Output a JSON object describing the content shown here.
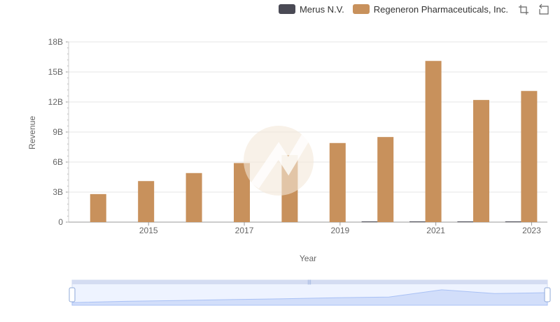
{
  "legend": [
    {
      "name": "Merus N.V.",
      "color": "#4a4a55"
    },
    {
      "name": "Regeneron Pharmaceuticals, Inc.",
      "color": "#c8915c"
    }
  ],
  "toolbar": {
    "zoom_icon": "zoom-in-icon",
    "reset_icon": "zoom-reset-icon"
  },
  "chart_data": {
    "type": "bar",
    "xlabel": "Year",
    "ylabel": "Revenue",
    "ylim": [
      0,
      18
    ],
    "y_ticks": [
      "0",
      "3B",
      "6B",
      "9B",
      "12B",
      "15B",
      "18B"
    ],
    "x_ticks": [
      "2015",
      "2017",
      "2019",
      "2021",
      "2023"
    ],
    "categories": [
      2014,
      2015,
      2016,
      2017,
      2018,
      2019,
      2020,
      2021,
      2022,
      2023
    ],
    "series": [
      {
        "name": "Merus N.V.",
        "color": "#4a4a55",
        "values": [
          0,
          0,
          0,
          0,
          0,
          0,
          0.03,
          0.05,
          0.04,
          0.04
        ]
      },
      {
        "name": "Regeneron Pharmaceuticals, Inc.",
        "color": "#c8915c",
        "values": [
          2.8,
          4.1,
          4.9,
          5.9,
          6.7,
          7.9,
          8.5,
          16.1,
          12.2,
          13.1
        ]
      }
    ]
  }
}
